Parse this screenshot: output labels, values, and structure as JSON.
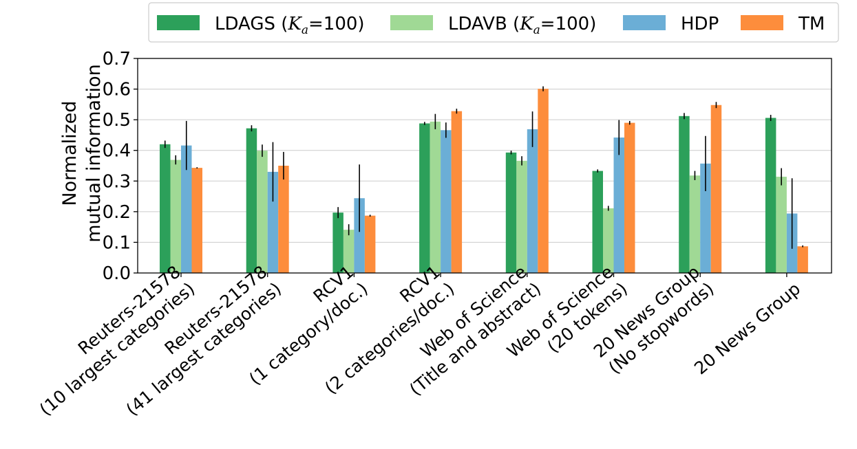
{
  "chart_data": {
    "type": "bar",
    "title": "",
    "xlabel": "",
    "ylabel": [
      "Normalized",
      "mutual information"
    ],
    "ylim": [
      0,
      0.7
    ],
    "yticks": [
      "0.0",
      "0.1",
      "0.2",
      "0.3",
      "0.4",
      "0.5",
      "0.6",
      "0.7"
    ],
    "grid": "horizontal",
    "legend_position": "top",
    "categories": [
      [
        "Reuters-21578",
        "(10 largest categories)"
      ],
      [
        "Reuters-21578",
        "(41 largest categories)"
      ],
      [
        "RCV1",
        "(1 category/doc.)"
      ],
      [
        "RCV1",
        "(2 categories/doc.)"
      ],
      [
        "Web of Science",
        "(Title and abstract)"
      ],
      [
        "Web of Science",
        "(20 tokens)"
      ],
      [
        "20 News Group",
        "(No stopwords)"
      ],
      [
        "20 News Group"
      ]
    ],
    "series": [
      {
        "name": "LDAGS (K_a=100)",
        "legend_prefix": "LDAGS (",
        "legend_var": "K",
        "legend_sub": "a",
        "legend_suffix": "=100)",
        "color": "#2ca05a",
        "values": [
          0.42,
          0.472,
          0.197,
          0.488,
          0.393,
          0.333,
          0.512,
          0.506
        ],
        "errors": [
          0.012,
          0.01,
          0.018,
          0.005,
          0.006,
          0.005,
          0.01,
          0.01
        ]
      },
      {
        "name": "LDAVB (K_a=100)",
        "legend_prefix": "LDAVB (",
        "legend_var": "K",
        "legend_sub": "a",
        "legend_suffix": "=100)",
        "color": "#a0d995",
        "values": [
          0.369,
          0.399,
          0.141,
          0.494,
          0.366,
          0.211,
          0.318,
          0.314
        ],
        "errors": [
          0.015,
          0.02,
          0.018,
          0.025,
          0.015,
          0.008,
          0.015,
          0.028
        ]
      },
      {
        "name": "HDP",
        "legend_prefix": "HDP",
        "legend_var": "",
        "legend_sub": "",
        "legend_suffix": "",
        "color": "#6baed6",
        "values": [
          0.416,
          0.33,
          0.244,
          0.466,
          0.469,
          0.442,
          0.357,
          0.194
        ],
        "errors": [
          0.08,
          0.097,
          0.11,
          0.025,
          0.058,
          0.057,
          0.09,
          0.115
        ]
      },
      {
        "name": "TM",
        "legend_prefix": "TM",
        "legend_var": "",
        "legend_sub": "",
        "legend_suffix": "",
        "color": "#fd8d3c",
        "values": [
          0.343,
          0.35,
          0.187,
          0.528,
          0.601,
          0.49,
          0.548,
          0.087
        ],
        "errors": [
          0.002,
          0.045,
          0.003,
          0.008,
          0.008,
          0.006,
          0.01,
          0.003
        ]
      }
    ]
  }
}
